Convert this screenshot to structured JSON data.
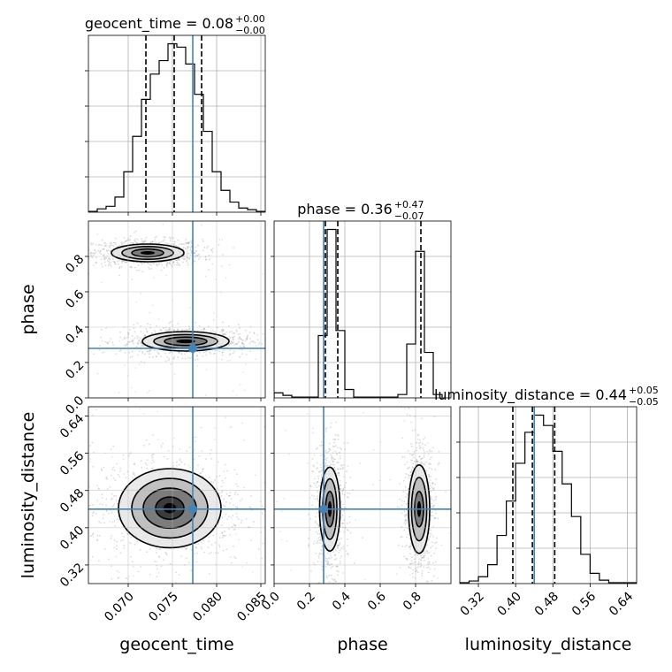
{
  "chart_data": {
    "type": "corner",
    "parameters": [
      "geocent_time",
      "phase",
      "luminosity_distance"
    ],
    "truths": {
      "geocent_time": 0.0773,
      "phase": 0.28,
      "luminosity_distance": 0.44
    },
    "colors": {
      "truth": "#4682b4",
      "hist": "#000000",
      "points": "#999999"
    },
    "grid": true,
    "diagonal": [
      {
        "param": "geocent_time",
        "title": {
          "label": "geocent_time = 0.08",
          "sup": "+0.00",
          "sub": "−0.00"
        },
        "xlim": [
          0.0655,
          0.0855
        ],
        "quantiles": [
          0.072,
          0.0752,
          0.0783
        ],
        "hist": {
          "edges": [
            0.0655,
            0.0665,
            0.0675,
            0.0685,
            0.0695,
            0.0705,
            0.0715,
            0.0725,
            0.0735,
            0.0745,
            0.0755,
            0.0765,
            0.0775,
            0.0785,
            0.0795,
            0.0805,
            0.0815,
            0.0825,
            0.0835,
            0.0845,
            0.0855
          ],
          "heights": [
            0.5,
            2,
            3.5,
            9,
            24,
            45,
            67,
            82,
            90,
            100,
            98,
            88,
            70,
            48,
            24,
            13,
            6,
            2.5,
            1.5,
            0.5
          ]
        }
      },
      {
        "param": "phase",
        "title": {
          "label": "phase = 0.36",
          "sup": "+0.47",
          "sub": "−0.07"
        },
        "xlim": [
          0.0,
          1.0
        ],
        "quantiles": [
          0.29,
          0.36,
          0.83
        ],
        "hist": {
          "edges": [
            0.0,
            0.05,
            0.1,
            0.15,
            0.2,
            0.25,
            0.3,
            0.35,
            0.4,
            0.45,
            0.5,
            0.55,
            0.6,
            0.65,
            0.7,
            0.75,
            0.8,
            0.85,
            0.9,
            0.95
          ],
          "heights": [
            3,
            1.5,
            0.5,
            0.5,
            0.5,
            37,
            100,
            40,
            5,
            0.5,
            0.5,
            0.5,
            0.5,
            0.5,
            2,
            32,
            87,
            27,
            2
          ]
        }
      },
      {
        "param": "luminosity_distance",
        "title": {
          "label": "luminosity_distance = 0.44",
          "sup": "+0.05",
          "sub": "−0.05"
        },
        "xlim": [
          0.28,
          0.66
        ],
        "quantiles": [
          0.394,
          0.436,
          0.484
        ],
        "hist": {
          "edges": [
            0.28,
            0.3,
            0.32,
            0.34,
            0.36,
            0.38,
            0.4,
            0.42,
            0.44,
            0.46,
            0.48,
            0.5,
            0.52,
            0.54,
            0.56,
            0.58,
            0.6,
            0.62,
            0.64,
            0.66
          ],
          "heights": [
            0.5,
            1.5,
            4,
            11,
            28,
            48,
            70,
            88,
            98,
            92,
            77,
            58,
            39,
            17,
            6,
            2,
            0.5,
            0.5,
            0.5
          ]
        }
      }
    ],
    "panels": [
      {
        "x": "geocent_time",
        "y": "phase",
        "xlim": [
          0.0655,
          0.0855
        ],
        "ylim": [
          0.0,
          1.0
        ],
        "modes": [
          {
            "cx": 0.0722,
            "cy": 0.82,
            "w": 1.1,
            "rx": [
              0.0041,
              0.0029,
              0.0018
            ],
            "ry": [
              0.05,
              0.036,
              0.022
            ]
          },
          {
            "cx": 0.0765,
            "cy": 0.32,
            "w": 1.0,
            "rx": [
              0.0049,
              0.0036,
              0.0024
            ],
            "ry": [
              0.055,
              0.038,
              0.024
            ]
          }
        ]
      },
      {
        "x": "geocent_time",
        "y": "luminosity_distance",
        "xlim": [
          0.0655,
          0.0855
        ],
        "ylim": [
          0.28,
          0.66
        ],
        "modes": [
          {
            "cx": 0.0747,
            "cy": 0.442,
            "w": 1.0,
            "rx": [
              0.0058,
              0.0043,
              0.003,
              0.0016
            ],
            "ry": [
              0.085,
              0.064,
              0.043,
              0.024
            ]
          }
        ]
      },
      {
        "x": "phase",
        "y": "luminosity_distance",
        "xlim": [
          0.0,
          1.0
        ],
        "ylim": [
          0.28,
          0.66
        ],
        "modes": [
          {
            "cx": 0.315,
            "cy": 0.44,
            "w": 1.0,
            "rx": [
              0.058,
              0.04,
              0.024
            ],
            "ry": [
              0.09,
              0.065,
              0.038
            ]
          },
          {
            "cx": 0.82,
            "cy": 0.44,
            "w": 0.9,
            "rx": [
              0.06,
              0.043,
              0.025
            ],
            "ry": [
              0.095,
              0.068,
              0.038
            ]
          }
        ]
      }
    ],
    "ticks": {
      "geocent_time": [
        0.07,
        0.075,
        0.08,
        0.085
      ],
      "geocent_time_labels": [
        "0.070",
        "0.075",
        "0.080",
        "0.085"
      ],
      "phase_x": [
        0.0,
        0.2,
        0.4,
        0.6,
        0.8
      ],
      "phase_x_labels": [
        "0.0",
        "0.2",
        "0.4",
        "0.6",
        "0.8"
      ],
      "phase_y": [
        0.0,
        0.2,
        0.4,
        0.6,
        0.8
      ],
      "phase_y_labels": [
        "0.0",
        "0.2",
        "0.4",
        "0.6",
        "0.8"
      ],
      "luminosity_distance": [
        0.32,
        0.4,
        0.48,
        0.56,
        0.64
      ],
      "luminosity_distance_labels": [
        "0.32",
        "0.40",
        "0.48",
        "0.56",
        "0.64"
      ]
    },
    "axis_labels": {
      "x": [
        "geocent_time",
        "phase",
        "luminosity_distance"
      ],
      "y": [
        "phase",
        "luminosity_distance"
      ]
    }
  }
}
